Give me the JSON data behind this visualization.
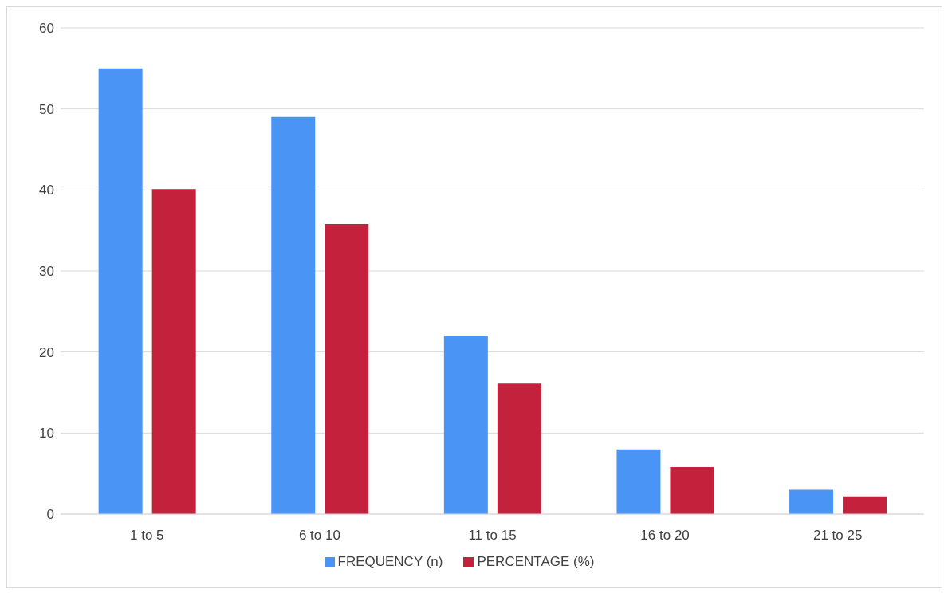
{
  "chart_data": {
    "type": "bar",
    "categories": [
      "1 to 5",
      "6 to 10",
      "11 to 15",
      "16 to 20",
      "21 to 25"
    ],
    "series": [
      {
        "name": "FREQUENCY (n)",
        "color": "#4a94f5",
        "values": [
          55,
          49,
          22,
          8,
          3
        ]
      },
      {
        "name": "PERCENTAGE (%)",
        "color": "#c3213c",
        "values": [
          40.1,
          35.8,
          16.1,
          5.8,
          2.2
        ]
      }
    ],
    "ylim": [
      0,
      60
    ],
    "yticks": [
      0,
      10,
      20,
      30,
      40,
      50,
      60
    ],
    "grid": "y",
    "legend": "bottom"
  }
}
